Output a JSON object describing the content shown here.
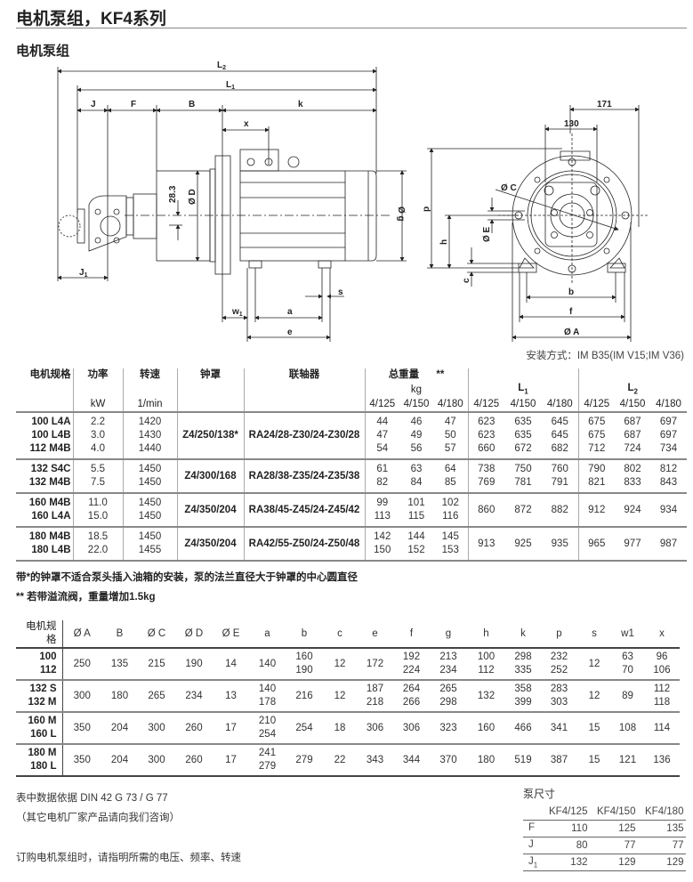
{
  "title": "电机泵组，KF4系列",
  "subtitle": "电机泵组",
  "drawing": {
    "labels": {
      "L2": "L",
      "L2_sub": "2",
      "L1": "L",
      "L1_sub": "1",
      "J": "J",
      "F": "F",
      "B": "B",
      "k": "k",
      "x": "x",
      "dim_28_3": "28.3",
      "D": "Ø D",
      "g": "Ø g",
      "J1": "J",
      "J1_sub": "1",
      "w1": "w",
      "w1_sub": "1",
      "a": "a",
      "e": "e",
      "s": "s",
      "p": "p",
      "h": "h",
      "c": "c",
      "E": "Ø E",
      "C": "Ø C",
      "b": "b",
      "f": "f",
      "A": "Ø A",
      "d130": "130",
      "d171": "171"
    },
    "mounting": "安装方式：IM B35(IM V15;IM V36)"
  },
  "table1": {
    "headers": {
      "spec": "电机规格",
      "power": "功率",
      "power_unit": "kW",
      "speed": "转速",
      "speed_unit": "1/min",
      "bell": "钟罩",
      "coupling": "联轴器",
      "weight": "总重量",
      "weight_mark": "**",
      "weight_unit": "kg",
      "L1": "L",
      "L1_sub": "1",
      "L2": "L",
      "L2_sub": "2",
      "sizes": [
        "4/125",
        "4/150",
        "4/180"
      ]
    },
    "groups": [
      {
        "spec": [
          "100 L4A",
          "100 L4B",
          "112 M4B"
        ],
        "power": [
          "2.2",
          "3.0",
          "4.0"
        ],
        "speed": [
          "1420",
          "1430",
          "1440"
        ],
        "bell": "Z4/250/138*",
        "coupling": "RA24/28-Z30/24-Z30/28",
        "weight": [
          [
            "44",
            "47",
            "54"
          ],
          [
            "46",
            "49",
            "56"
          ],
          [
            "47",
            "50",
            "57"
          ]
        ],
        "L1": [
          [
            "623",
            "623",
            "660"
          ],
          [
            "635",
            "635",
            "672"
          ],
          [
            "645",
            "645",
            "682"
          ]
        ],
        "L2": [
          [
            "675",
            "675",
            "712"
          ],
          [
            "687",
            "687",
            "724"
          ],
          [
            "697",
            "697",
            "734"
          ]
        ]
      },
      {
        "spec": [
          "132 S4C",
          "132 M4B"
        ],
        "power": [
          "5.5",
          "7.5"
        ],
        "speed": [
          "1450",
          "1450"
        ],
        "bell": "Z4/300/168",
        "coupling": "RA28/38-Z35/24-Z35/38",
        "weight": [
          [
            "61",
            "82"
          ],
          [
            "63",
            "84"
          ],
          [
            "64",
            "85"
          ]
        ],
        "L1": [
          [
            "738",
            "769"
          ],
          [
            "750",
            "781"
          ],
          [
            "760",
            "791"
          ]
        ],
        "L2": [
          [
            "790",
            "821"
          ],
          [
            "802",
            "833"
          ],
          [
            "812",
            "843"
          ]
        ]
      },
      {
        "spec": [
          "160 M4B",
          "160 L4A"
        ],
        "power": [
          "11.0",
          "15.0"
        ],
        "speed": [
          "1450",
          "1450"
        ],
        "bell": "Z4/350/204",
        "coupling": "RA38/45-Z45/24-Z45/42",
        "weight": [
          [
            "99",
            "113"
          ],
          [
            "101",
            "115"
          ],
          [
            "102",
            "116"
          ]
        ],
        "L1": [
          [
            "860"
          ],
          [
            "872"
          ],
          [
            "882"
          ]
        ],
        "L2": [
          [
            "912"
          ],
          [
            "924"
          ],
          [
            "934"
          ]
        ]
      },
      {
        "spec": [
          "180 M4B",
          "180 L4B"
        ],
        "power": [
          "18.5",
          "22.0"
        ],
        "speed": [
          "1450",
          "1455"
        ],
        "bell": "Z4/350/204",
        "coupling": "RA42/55-Z50/24-Z50/48",
        "weight": [
          [
            "142",
            "150"
          ],
          [
            "144",
            "152"
          ],
          [
            "145",
            "153"
          ]
        ],
        "L1": [
          [
            "913"
          ],
          [
            "925"
          ],
          [
            "935"
          ]
        ],
        "L2": [
          [
            "965"
          ],
          [
            "977"
          ],
          [
            "987"
          ]
        ]
      }
    ]
  },
  "notes": [
    "带*的钟罩不适合泵头插入油箱的安装，泵的法兰直径大于钟罩的中心圆直径",
    "** 若带溢流阀，重量增加1.5kg"
  ],
  "table2": {
    "headers": [
      "电机规格",
      "Ø A",
      "B",
      "Ø C",
      "Ø D",
      "Ø E",
      "a",
      "b",
      "c",
      "e",
      "f",
      "g",
      "h",
      "k",
      "p",
      "s",
      "w1",
      "x"
    ],
    "rows": [
      [
        [
          "100",
          "112"
        ],
        [
          "250"
        ],
        [
          "135"
        ],
        [
          "215"
        ],
        [
          "190"
        ],
        [
          "14"
        ],
        [
          "140"
        ],
        [
          "160",
          "190"
        ],
        [
          "12"
        ],
        [
          "172"
        ],
        [
          "192",
          "224"
        ],
        [
          "213",
          "234"
        ],
        [
          "100",
          "112"
        ],
        [
          "298",
          "335"
        ],
        [
          "232",
          "252"
        ],
        [
          "12"
        ],
        [
          "63",
          "70"
        ],
        [
          "96",
          "106"
        ]
      ],
      [
        [
          "132 S",
          "132 M"
        ],
        [
          "300"
        ],
        [
          "180"
        ],
        [
          "265"
        ],
        [
          "234"
        ],
        [
          "13"
        ],
        [
          "140",
          "178"
        ],
        [
          "216"
        ],
        [
          "12"
        ],
        [
          "187",
          "218"
        ],
        [
          "264",
          "266"
        ],
        [
          "265",
          "298"
        ],
        [
          "132"
        ],
        [
          "358",
          "399"
        ],
        [
          "283",
          "303"
        ],
        [
          "12"
        ],
        [
          "89"
        ],
        [
          "112",
          "118"
        ]
      ],
      [
        [
          "160 M",
          "160 L"
        ],
        [
          "350"
        ],
        [
          "204"
        ],
        [
          "300"
        ],
        [
          "260"
        ],
        [
          "17"
        ],
        [
          "210",
          "254"
        ],
        [
          "254"
        ],
        [
          "18"
        ],
        [
          "306"
        ],
        [
          "306"
        ],
        [
          "323"
        ],
        [
          "160"
        ],
        [
          "466"
        ],
        [
          "341"
        ],
        [
          "15"
        ],
        [
          "108"
        ],
        [
          "114"
        ]
      ],
      [
        [
          "180 M",
          "180 L"
        ],
        [
          "350"
        ],
        [
          "204"
        ],
        [
          "300"
        ],
        [
          "260"
        ],
        [
          "17"
        ],
        [
          "241",
          "279"
        ],
        [
          "279"
        ],
        [
          "22"
        ],
        [
          "343"
        ],
        [
          "344"
        ],
        [
          "370"
        ],
        [
          "180"
        ],
        [
          "519"
        ],
        [
          "387"
        ],
        [
          "15"
        ],
        [
          "121"
        ],
        [
          "136"
        ]
      ]
    ]
  },
  "footer": {
    "din": "表中数据依据 DIN 42 G 73 / G 77",
    "other": "（其它电机厂家产品请向我们咨询）",
    "order": "订购电机泵组时，请指明所需的电压、频率、转速"
  },
  "pump": {
    "title": "泵尺寸",
    "headers": [
      "",
      "KF4/125",
      "KF4/150",
      "KF4/180"
    ],
    "rows": [
      {
        "label": "F",
        "sub": "",
        "values": [
          "110",
          "125",
          "135"
        ]
      },
      {
        "label": "J",
        "sub": "",
        "values": [
          "80",
          "77",
          "77"
        ]
      },
      {
        "label": "J",
        "sub": "1",
        "values": [
          "132",
          "129",
          "129"
        ]
      }
    ]
  }
}
